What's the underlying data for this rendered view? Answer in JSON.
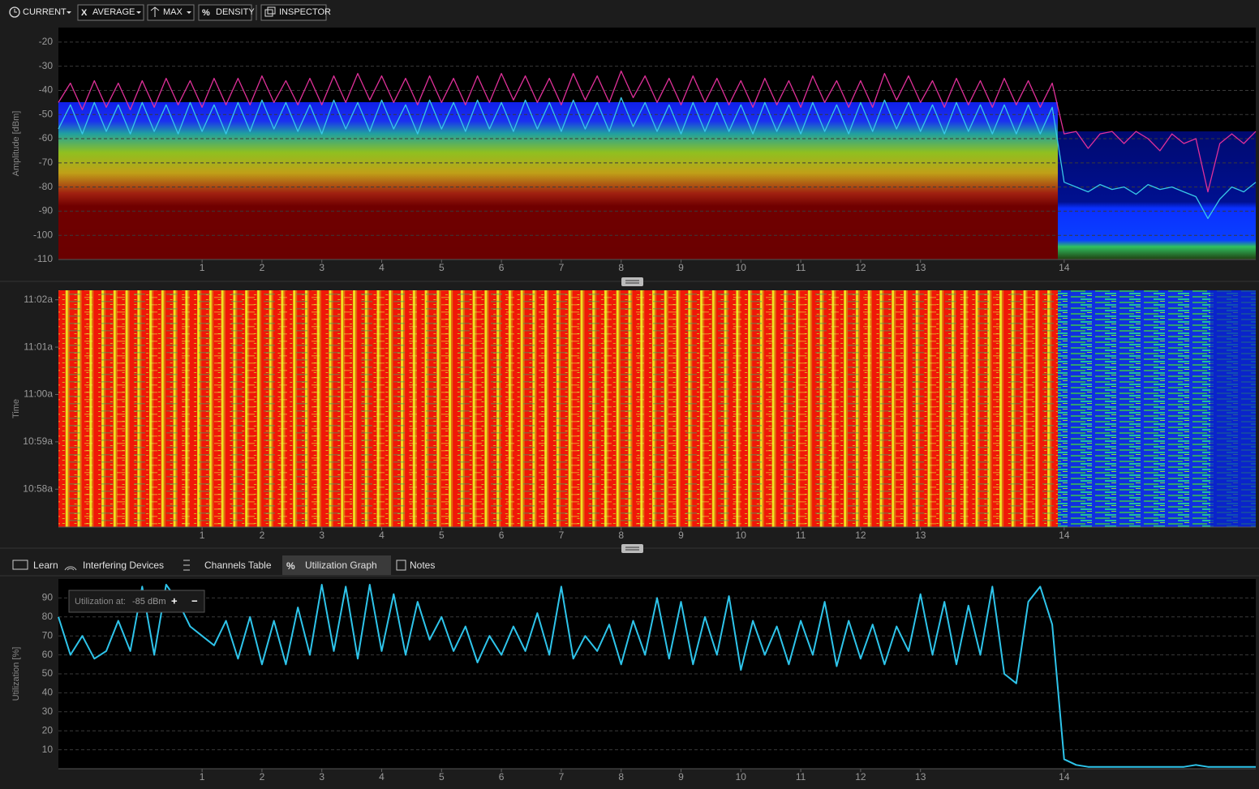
{
  "toolbar": {
    "buttons": [
      "CURRENT",
      "AVERAGE",
      "MAX",
      "DENSITY",
      "INSPECTOR"
    ]
  },
  "spectrum": {
    "type": "line",
    "ylabel": "Amplitude [dBm]",
    "xlim": [
      2400,
      2500
    ],
    "ylim": [
      -110,
      -14
    ],
    "yticks": [
      -20,
      -30,
      -40,
      -50,
      -60,
      -70,
      -80,
      -90,
      -100,
      -110
    ],
    "xticks": [
      {
        "value": 2412,
        "label": "1"
      },
      {
        "value": 2417,
        "label": "2"
      },
      {
        "value": 2422,
        "label": "3"
      },
      {
        "value": 2427,
        "label": "4"
      },
      {
        "value": 2432,
        "label": "5"
      },
      {
        "value": 2437,
        "label": "6"
      },
      {
        "value": 2442,
        "label": "7"
      },
      {
        "value": 2447,
        "label": "8"
      },
      {
        "value": 2452,
        "label": "9"
      },
      {
        "value": 2457,
        "label": "10"
      },
      {
        "value": 2462,
        "label": "11"
      },
      {
        "value": 2467,
        "label": "12"
      },
      {
        "value": 2472,
        "label": "13"
      },
      {
        "value": 2484,
        "label": "14"
      }
    ],
    "grid": true,
    "x": [
      2400,
      2401,
      2402,
      2403,
      2404,
      2405,
      2406,
      2407,
      2408,
      2409,
      2410,
      2411,
      2412,
      2413,
      2414,
      2415,
      2416,
      2417,
      2418,
      2419,
      2420,
      2421,
      2422,
      2423,
      2424,
      2425,
      2426,
      2427,
      2428,
      2429,
      2430,
      2431,
      2432,
      2433,
      2434,
      2435,
      2436,
      2437,
      2438,
      2439,
      2440,
      2441,
      2442,
      2443,
      2444,
      2445,
      2446,
      2447,
      2448,
      2449,
      2450,
      2451,
      2452,
      2453,
      2454,
      2455,
      2456,
      2457,
      2458,
      2459,
      2460,
      2461,
      2462,
      2463,
      2464,
      2465,
      2466,
      2467,
      2468,
      2469,
      2470,
      2471,
      2472,
      2473,
      2474,
      2475,
      2476,
      2477,
      2478,
      2479,
      2480,
      2481,
      2482,
      2483,
      2484,
      2485,
      2486,
      2487,
      2488,
      2489,
      2490,
      2491,
      2492,
      2493,
      2494,
      2495,
      2496,
      2497,
      2498,
      2499,
      2500
    ],
    "series": [
      {
        "color": "#e0309a",
        "values": [
          -45,
          -37,
          -48,
          -36,
          -47,
          -37,
          -48,
          -36,
          -47,
          -35,
          -46,
          -36,
          -47,
          -35,
          -46,
          -35,
          -46,
          -34,
          -45,
          -36,
          -46,
          -35,
          -46,
          -34,
          -45,
          -33,
          -44,
          -34,
          -45,
          -35,
          -46,
          -34,
          -45,
          -35,
          -46,
          -34,
          -45,
          -33,
          -44,
          -34,
          -45,
          -35,
          -46,
          -33,
          -44,
          -34,
          -45,
          -32,
          -43,
          -34,
          -45,
          -35,
          -46,
          -34,
          -45,
          -35,
          -46,
          -36,
          -47,
          -35,
          -46,
          -36,
          -47,
          -34,
          -45,
          -36,
          -47,
          -36,
          -47,
          -33,
          -44,
          -34,
          -45,
          -36,
          -47,
          -35,
          -46,
          -36,
          -47,
          -35,
          -46,
          -36,
          -47,
          -37,
          -58,
          -57,
          -64,
          -58,
          -57,
          -62,
          -57,
          -60,
          -65,
          -58,
          -62,
          -60,
          -82,
          -62,
          -58,
          -62,
          -57
        ]
      },
      {
        "color": "#38c8e8",
        "values": [
          -56,
          -46,
          -58,
          -45,
          -57,
          -46,
          -58,
          -45,
          -57,
          -46,
          -58,
          -45,
          -57,
          -46,
          -58,
          -45,
          -57,
          -44,
          -56,
          -45,
          -57,
          -46,
          -58,
          -44,
          -56,
          -45,
          -57,
          -44,
          -56,
          -46,
          -58,
          -44,
          -56,
          -45,
          -57,
          -44,
          -56,
          -45,
          -57,
          -44,
          -56,
          -45,
          -57,
          -44,
          -56,
          -45,
          -57,
          -43,
          -55,
          -45,
          -57,
          -46,
          -58,
          -45,
          -57,
          -45,
          -57,
          -46,
          -58,
          -45,
          -57,
          -46,
          -58,
          -45,
          -57,
          -46,
          -58,
          -45,
          -57,
          -44,
          -56,
          -45,
          -57,
          -46,
          -58,
          -45,
          -57,
          -46,
          -58,
          -46,
          -58,
          -46,
          -58,
          -47,
          -78,
          -80,
          -82,
          -79,
          -81,
          -80,
          -83,
          -79,
          -81,
          -80,
          -82,
          -84,
          -93,
          -85,
          -80,
          -82,
          -78
        ]
      }
    ]
  },
  "waterfall": {
    "type": "heatmap",
    "ylabel": "Time",
    "xlim": [
      2400,
      2500
    ],
    "ylim": [
      657.2,
      662.2
    ],
    "yticks": [
      {
        "value": 662,
        "label": "11:02a"
      },
      {
        "value": 661,
        "label": "11:01a"
      },
      {
        "value": 660,
        "label": "11:00a"
      },
      {
        "value": 659,
        "label": "10:59a"
      },
      {
        "value": 658,
        "label": "10:58a"
      }
    ],
    "xticks": [
      {
        "value": 2412,
        "label": "1"
      },
      {
        "value": 2417,
        "label": "2"
      },
      {
        "value": 2422,
        "label": "3"
      },
      {
        "value": 2427,
        "label": "4"
      },
      {
        "value": 2432,
        "label": "5"
      },
      {
        "value": 2437,
        "label": "6"
      },
      {
        "value": 2442,
        "label": "7"
      },
      {
        "value": 2447,
        "label": "8"
      },
      {
        "value": 2452,
        "label": "9"
      },
      {
        "value": 2457,
        "label": "10"
      },
      {
        "value": 2462,
        "label": "11"
      },
      {
        "value": 2467,
        "label": "12"
      },
      {
        "value": 2472,
        "label": "13"
      },
      {
        "value": 2484,
        "label": "14"
      }
    ]
  },
  "tabs": [
    "Learn",
    "Interfering Devices",
    "Channels Table",
    "Utilization Graph",
    "Notes"
  ],
  "utilization": {
    "type": "line",
    "ylabel": "Utilization [%]",
    "threshold_label": "Utilization at:",
    "threshold_value": "-85 dBm",
    "buttons": [
      "+",
      "−"
    ],
    "xlim": [
      2400,
      2500
    ],
    "ylim": [
      0,
      100
    ],
    "yticks": [
      10,
      20,
      30,
      40,
      50,
      60,
      70,
      80,
      90
    ],
    "grid": true,
    "xticks": [
      {
        "value": 2412,
        "label": "1"
      },
      {
        "value": 2417,
        "label": "2"
      },
      {
        "value": 2422,
        "label": "3"
      },
      {
        "value": 2427,
        "label": "4"
      },
      {
        "value": 2432,
        "label": "5"
      },
      {
        "value": 2437,
        "label": "6"
      },
      {
        "value": 2442,
        "label": "7"
      },
      {
        "value": 2447,
        "label": "8"
      },
      {
        "value": 2452,
        "label": "9"
      },
      {
        "value": 2457,
        "label": "10"
      },
      {
        "value": 2462,
        "label": "11"
      },
      {
        "value": 2467,
        "label": "12"
      },
      {
        "value": 2472,
        "label": "13"
      },
      {
        "value": 2484,
        "label": "14"
      }
    ],
    "x": [
      2400,
      2401,
      2402,
      2403,
      2404,
      2405,
      2406,
      2407,
      2408,
      2409,
      2410,
      2411,
      2412,
      2413,
      2414,
      2415,
      2416,
      2417,
      2418,
      2419,
      2420,
      2421,
      2422,
      2423,
      2424,
      2425,
      2426,
      2427,
      2428,
      2429,
      2430,
      2431,
      2432,
      2433,
      2434,
      2435,
      2436,
      2437,
      2438,
      2439,
      2440,
      2441,
      2442,
      2443,
      2444,
      2445,
      2446,
      2447,
      2448,
      2449,
      2450,
      2451,
      2452,
      2453,
      2454,
      2455,
      2456,
      2457,
      2458,
      2459,
      2460,
      2461,
      2462,
      2463,
      2464,
      2465,
      2466,
      2467,
      2468,
      2469,
      2470,
      2471,
      2472,
      2473,
      2474,
      2475,
      2476,
      2477,
      2478,
      2479,
      2480,
      2481,
      2482,
      2483,
      2484,
      2485,
      2486,
      2487,
      2488,
      2489,
      2490,
      2491,
      2492,
      2493,
      2494,
      2495,
      2496,
      2497,
      2498,
      2499,
      2500
    ],
    "color": "#2ec4ea",
    "values": [
      80,
      60,
      70,
      58,
      62,
      78,
      62,
      96,
      60,
      97,
      88,
      75,
      70,
      65,
      78,
      58,
      80,
      55,
      78,
      55,
      85,
      60,
      97,
      62,
      96,
      58,
      97,
      62,
      92,
      60,
      88,
      68,
      80,
      62,
      75,
      56,
      70,
      60,
      75,
      62,
      82,
      60,
      96,
      58,
      70,
      62,
      76,
      55,
      78,
      60,
      90,
      58,
      88,
      55,
      80,
      60,
      91,
      52,
      78,
      60,
      75,
      55,
      78,
      60,
      88,
      54,
      78,
      58,
      76,
      55,
      75,
      62,
      92,
      60,
      88,
      55,
      86,
      60,
      96,
      50,
      45,
      88,
      96,
      76,
      5,
      2,
      1,
      1,
      1,
      1,
      1,
      1,
      1,
      1,
      1,
      2,
      1,
      1,
      1,
      1,
      1
    ]
  }
}
